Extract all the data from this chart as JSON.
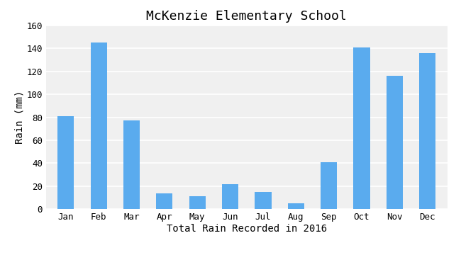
{
  "title": "McKenzie Elementary School",
  "xlabel": "Total Rain Recorded in 2016",
  "ylabel": "Rain (mm)",
  "months": [
    "Jan",
    "Feb",
    "Mar",
    "Apr",
    "May",
    "Jun",
    "Jul",
    "Aug",
    "Sep",
    "Oct",
    "Nov",
    "Dec"
  ],
  "values": [
    81,
    145,
    77,
    14,
    11,
    22,
    15,
    5,
    41,
    141,
    116,
    136
  ],
  "bar_color": "#5aabee",
  "bg_color": "#ffffff",
  "plot_bg_color": "#f0f0f0",
  "ylim": [
    0,
    160
  ],
  "yticks": [
    0,
    20,
    40,
    60,
    80,
    100,
    120,
    140,
    160
  ],
  "title_fontsize": 13,
  "label_fontsize": 10,
  "tick_fontsize": 9,
  "bar_width": 0.5
}
